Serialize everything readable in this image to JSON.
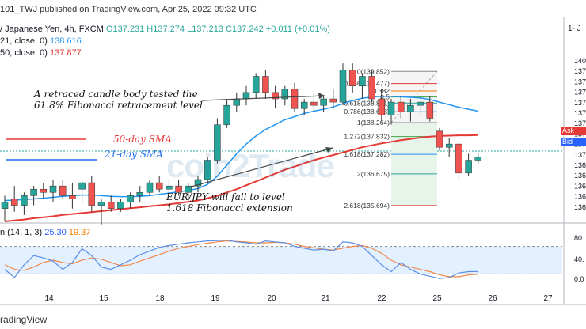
{
  "header": {
    "publish": "101_TWJ published on TradingView.com, Apr 25, 2022 09:32 UTC",
    "symbol": "/ Japanese Yen, 4h, FXCM",
    "ohlc": "O137.231 H137.274 L137.213 C137.242 +0.011 (+0.01%)",
    "ma21_label": "21, close, 0)",
    "ma21_value": "138.616",
    "ma50_label": "50, close, 0)",
    "ma50_value": "137.877",
    "corner": "1- J"
  },
  "annotations": {
    "retrace_line1": "A retraced candle body tested the",
    "retrace_line2": "61.8% Fibonacci retracement level",
    "sma50": "50-day SMA",
    "sma21": "21-day SMA",
    "fall_line1": "EUR/JPY will fall to level",
    "fall_line2": "1.618 Fibonacci extension",
    "watermark": "coin2Trade"
  },
  "stoch_header": {
    "label": "n (14, 1, 3)",
    "k": "25.30",
    "d": "19.37"
  },
  "footer": {
    "brand": "radingView"
  },
  "price_tags": {
    "ask": "Ask",
    "bid": "Bid"
  },
  "colors": {
    "up": "#26a69a",
    "down": "#ef5350",
    "sma21": "#2196f3",
    "sma50": "#e53935",
    "stoch_k": "#5b8ee6",
    "stoch_d": "#f0884a",
    "stoch_band": "#e3f0ff",
    "ask": "#e53935",
    "bid": "#2962ff"
  },
  "chart_data": {
    "type": "candlestick",
    "price_axis_labels": [
      "140",
      "137",
      "137",
      "137",
      "137",
      "137",
      "137",
      "137",
      "137",
      "137",
      "136",
      "136",
      "136",
      "136",
      "136"
    ],
    "price_axis_top_label": "140",
    "stoch_axis_labels": [
      "80.",
      "40.",
      "0.0"
    ],
    "x_ticks": [
      "14",
      "15",
      "18",
      "19",
      "20",
      "21",
      "22",
      "25",
      "26",
      "27"
    ],
    "candles": [
      {
        "o": 135.6,
        "h": 136.0,
        "l": 135.2,
        "c": 135.8
      },
      {
        "o": 135.9,
        "h": 136.3,
        "l": 135.5,
        "c": 135.7
      },
      {
        "o": 135.7,
        "h": 136.1,
        "l": 135.4,
        "c": 136.0
      },
      {
        "o": 136.0,
        "h": 136.3,
        "l": 135.7,
        "c": 136.2
      },
      {
        "o": 136.2,
        "h": 136.4,
        "l": 135.9,
        "c": 136.1
      },
      {
        "o": 136.1,
        "h": 136.5,
        "l": 135.8,
        "c": 136.3
      },
      {
        "o": 136.3,
        "h": 136.5,
        "l": 135.9,
        "c": 136.0
      },
      {
        "o": 136.0,
        "h": 136.4,
        "l": 135.6,
        "c": 135.9
      },
      {
        "o": 136.2,
        "h": 136.5,
        "l": 135.8,
        "c": 136.4
      },
      {
        "o": 136.4,
        "h": 136.6,
        "l": 135.5,
        "c": 135.7
      },
      {
        "o": 135.7,
        "h": 135.9,
        "l": 135.1,
        "c": 135.8
      },
      {
        "o": 135.8,
        "h": 136.0,
        "l": 135.5,
        "c": 135.6
      },
      {
        "o": 135.6,
        "h": 135.9,
        "l": 135.5,
        "c": 135.8
      },
      {
        "o": 135.8,
        "h": 136.1,
        "l": 135.6,
        "c": 136.0
      },
      {
        "o": 136.0,
        "h": 136.3,
        "l": 135.8,
        "c": 136.1
      },
      {
        "o": 136.1,
        "h": 136.5,
        "l": 136.0,
        "c": 136.4
      },
      {
        "o": 136.4,
        "h": 136.6,
        "l": 136.1,
        "c": 136.2
      },
      {
        "o": 136.2,
        "h": 136.5,
        "l": 136.0,
        "c": 136.3
      },
      {
        "o": 136.3,
        "h": 136.5,
        "l": 136.0,
        "c": 136.1
      },
      {
        "o": 136.1,
        "h": 136.4,
        "l": 135.9,
        "c": 136.3
      },
      {
        "o": 136.3,
        "h": 136.6,
        "l": 136.1,
        "c": 136.5
      },
      {
        "o": 136.5,
        "h": 137.2,
        "l": 136.4,
        "c": 137.1
      },
      {
        "o": 137.1,
        "h": 138.4,
        "l": 137.0,
        "c": 138.2
      },
      {
        "o": 138.2,
        "h": 139.0,
        "l": 138.1,
        "c": 138.8
      },
      {
        "o": 138.8,
        "h": 139.2,
        "l": 138.6,
        "c": 139.0
      },
      {
        "o": 139.0,
        "h": 139.4,
        "l": 138.8,
        "c": 139.2
      },
      {
        "o": 139.2,
        "h": 139.8,
        "l": 139.0,
        "c": 139.7
      },
      {
        "o": 139.7,
        "h": 139.9,
        "l": 139.0,
        "c": 139.2
      },
      {
        "o": 139.2,
        "h": 139.4,
        "l": 138.7,
        "c": 139.0
      },
      {
        "o": 139.0,
        "h": 139.4,
        "l": 138.8,
        "c": 139.3
      },
      {
        "o": 139.3,
        "h": 139.5,
        "l": 138.6,
        "c": 138.7
      },
      {
        "o": 138.7,
        "h": 139.0,
        "l": 138.5,
        "c": 138.9
      },
      {
        "o": 138.9,
        "h": 139.2,
        "l": 138.6,
        "c": 138.8
      },
      {
        "o": 138.8,
        "h": 139.1,
        "l": 138.6,
        "c": 139.0
      },
      {
        "o": 139.0,
        "h": 139.3,
        "l": 138.7,
        "c": 138.9
      },
      {
        "o": 138.9,
        "h": 140.1,
        "l": 138.8,
        "c": 139.9
      },
      {
        "o": 139.9,
        "h": 140.1,
        "l": 139.2,
        "c": 139.4
      },
      {
        "o": 139.4,
        "h": 139.8,
        "l": 139.0,
        "c": 139.7
      },
      {
        "o": 139.7,
        "h": 139.9,
        "l": 138.9,
        "c": 139.0
      },
      {
        "o": 139.0,
        "h": 139.3,
        "l": 138.3,
        "c": 138.5
      },
      {
        "o": 138.5,
        "h": 139.0,
        "l": 138.2,
        "c": 138.9
      },
      {
        "o": 138.9,
        "h": 139.1,
        "l": 138.4,
        "c": 138.6
      },
      {
        "o": 138.6,
        "h": 139.0,
        "l": 138.3,
        "c": 138.8
      },
      {
        "o": 138.8,
        "h": 139.1,
        "l": 138.5,
        "c": 138.9
      },
      {
        "o": 138.9,
        "h": 139.1,
        "l": 138.3,
        "c": 138.4
      },
      {
        "o": 138.0,
        "h": 138.1,
        "l": 137.4,
        "c": 137.5
      },
      {
        "o": 137.5,
        "h": 137.8,
        "l": 137.2,
        "c": 137.6
      },
      {
        "o": 137.6,
        "h": 137.7,
        "l": 136.5,
        "c": 136.7
      },
      {
        "o": 136.7,
        "h": 137.3,
        "l": 136.6,
        "c": 137.1
      },
      {
        "o": 137.1,
        "h": 137.3,
        "l": 137.0,
        "c": 137.2
      }
    ],
    "candle_x_dates": [
      "13",
      "13",
      "13",
      "13",
      "13",
      "13",
      "14",
      "14",
      "14",
      "14",
      "14",
      "14",
      "15",
      "15",
      "15",
      "15",
      "15",
      "15",
      "18",
      "18",
      "18",
      "18",
      "19",
      "19",
      "19",
      "19",
      "19",
      "19",
      "20",
      "20",
      "20",
      "20",
      "20",
      "20",
      "21",
      "21",
      "21",
      "21",
      "22",
      "22",
      "22",
      "22",
      "22",
      "22",
      "25",
      "25",
      "25",
      "25",
      "25",
      "25"
    ],
    "sma21": [
      135.85,
      135.86,
      135.88,
      135.9,
      135.92,
      135.95,
      135.98,
      136.0,
      136.02,
      136.02,
      136.0,
      135.98,
      135.97,
      135.97,
      135.98,
      136.0,
      136.04,
      136.08,
      136.12,
      136.16,
      136.22,
      136.35,
      136.6,
      136.95,
      137.3,
      137.6,
      137.85,
      138.05,
      138.2,
      138.35,
      138.45,
      138.55,
      138.62,
      138.68,
      138.75,
      138.85,
      138.95,
      139.02,
      139.06,
      139.08,
      139.08,
      139.07,
      139.05,
      139.03,
      138.98,
      138.9,
      138.82,
      138.74,
      138.68,
      138.62
    ],
    "sma50": [
      135.2,
      135.23,
      135.26,
      135.3,
      135.33,
      135.36,
      135.4,
      135.43,
      135.46,
      135.49,
      135.52,
      135.55,
      135.58,
      135.61,
      135.64,
      135.67,
      135.7,
      135.73,
      135.77,
      135.81,
      135.85,
      135.92,
      136.0,
      136.1,
      136.2,
      136.32,
      136.44,
      136.56,
      136.68,
      136.8,
      136.9,
      137.0,
      137.1,
      137.18,
      137.26,
      137.34,
      137.42,
      137.5,
      137.56,
      137.62,
      137.67,
      137.72,
      137.76,
      137.8,
      137.83,
      137.85,
      137.86,
      137.87,
      137.87,
      137.877
    ],
    "fibonacci": [
      {
        "label": "0(139.852)",
        "price": 139.852
      },
      {
        "label": "0.236(139.477)",
        "price": 139.477
      },
      {
        "label": "0.382",
        "price": 139.245
      },
      {
        "label": "0.5",
        "price": 139.058
      },
      {
        "label": "0.618(138.871)",
        "price": 138.871
      },
      {
        "label": "0.786(138.603)",
        "price": 138.603
      },
      {
        "label": "1(138.264)",
        "price": 138.264
      },
      {
        "label": "1.272(137.832)",
        "price": 137.832
      },
      {
        "label": "1.618(137.282)",
        "price": 137.282
      },
      {
        "label": "2(136.675)",
        "price": 136.675
      },
      {
        "label": "2.618(135.694)",
        "price": 135.694
      }
    ],
    "stoch_k": [
      30,
      12,
      40,
      60,
      55,
      48,
      30,
      45,
      75,
      60,
      35,
      30,
      40,
      50,
      62,
      70,
      78,
      82,
      85,
      88,
      90,
      92,
      93,
      94,
      90,
      88,
      85,
      92,
      90,
      88,
      80,
      76,
      72,
      74,
      70,
      90,
      88,
      80,
      60,
      40,
      25,
      45,
      30,
      20,
      15,
      10,
      12,
      22,
      25,
      25.3
    ],
    "stoch_d": [
      40,
      30,
      28,
      35,
      45,
      50,
      45,
      42,
      50,
      55,
      52,
      45,
      38,
      40,
      48,
      55,
      62,
      70,
      76,
      80,
      84,
      87,
      90,
      92,
      91,
      90,
      88,
      88,
      89,
      88,
      85,
      80,
      77,
      74,
      72,
      76,
      80,
      82,
      76,
      65,
      50,
      40,
      35,
      30,
      25,
      18,
      14,
      14,
      18,
      19.37
    ],
    "stoch_levels": [
      80,
      20
    ]
  }
}
